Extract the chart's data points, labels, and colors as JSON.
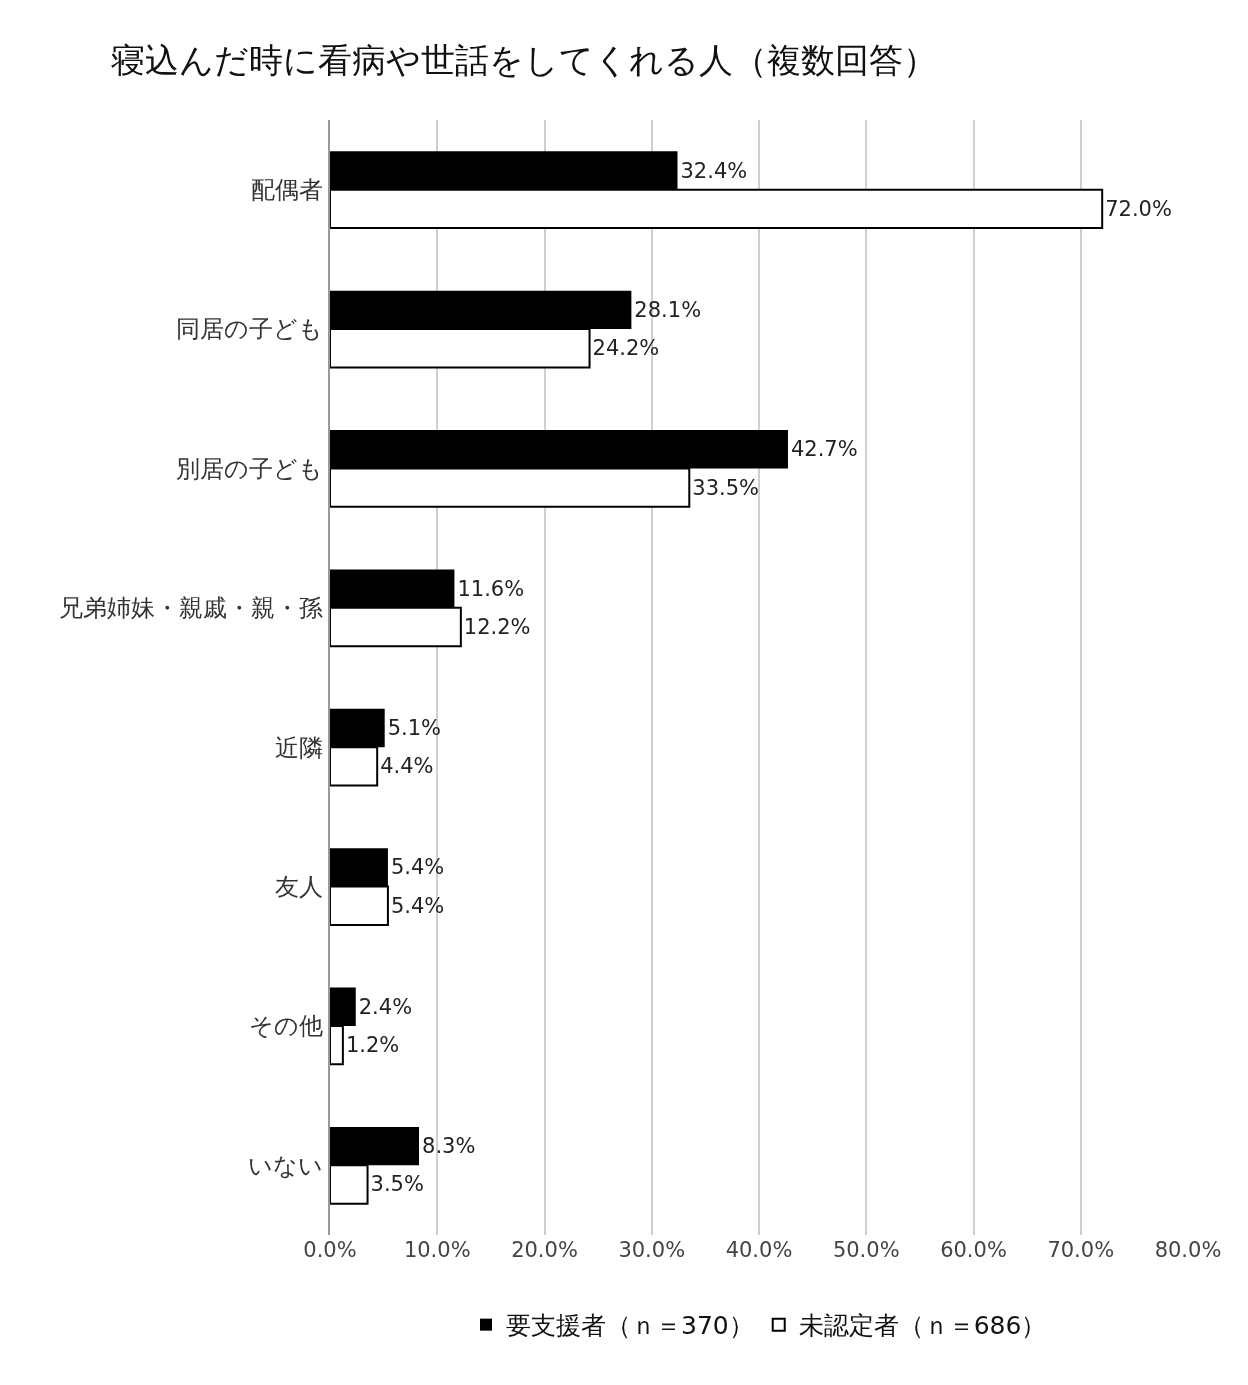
{
  "chart_data": {
    "type": "bar",
    "orientation": "horizontal",
    "title": "寝込んだ時に看病や世話をしてくれる人（複数回答）",
    "categories": [
      "配偶者",
      "同居の子ども",
      "別居の子ども",
      "兄弟姉妹・親戚・親・孫",
      "近隣",
      "友人",
      "その他",
      "いない"
    ],
    "series": [
      {
        "name": "要支援者（ｎ＝370）",
        "color": "#000000",
        "values": [
          32.4,
          28.1,
          42.7,
          11.6,
          5.1,
          5.4,
          2.4,
          8.3
        ],
        "value_labels": [
          "32.4%",
          "28.1%",
          "42.7%",
          "11.6%",
          "5.1%",
          "5.4%",
          "2.4%",
          "8.3%"
        ]
      },
      {
        "name": "未認定者（ｎ＝686）",
        "color": "#ffffff",
        "values": [
          72.0,
          24.2,
          33.5,
          12.2,
          4.4,
          5.4,
          1.2,
          3.5
        ],
        "value_labels": [
          "72.0%",
          "24.2%",
          "33.5%",
          "12.2%",
          "4.4%",
          "5.4%",
          "1.2%",
          "3.5%"
        ]
      }
    ],
    "xlim": [
      0,
      80
    ],
    "xticks": [
      {
        "value": 0,
        "label": "0.0%"
      },
      {
        "value": 10,
        "label": "10.0%"
      },
      {
        "value": 20,
        "label": "20.0%"
      },
      {
        "value": 30,
        "label": "30.0%"
      },
      {
        "value": 40,
        "label": "40.0%"
      },
      {
        "value": 50,
        "label": "50.0%"
      },
      {
        "value": 60,
        "label": "60.0%"
      },
      {
        "value": 70,
        "label": "70.0%"
      },
      {
        "value": 80,
        "label": "80.0%"
      }
    ],
    "grid": "x",
    "legend": "bottom"
  }
}
